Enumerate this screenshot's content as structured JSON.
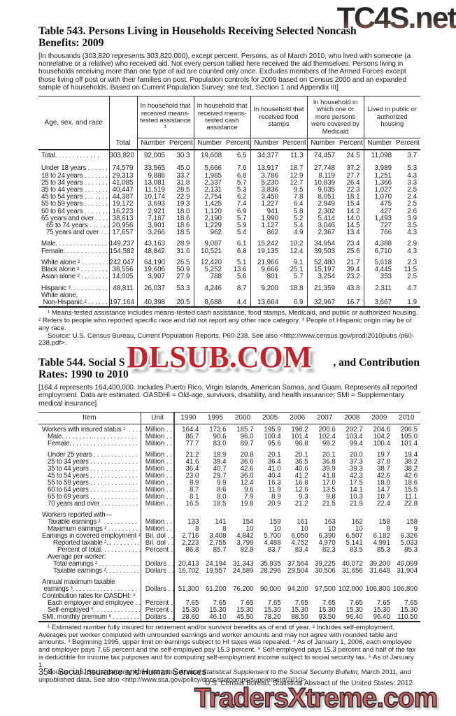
{
  "watermarks": {
    "top": "TC4S.net",
    "middle": "DLSUB.COM",
    "bottom": "TradersXtreme.com"
  },
  "colors": {
    "watermark_top_dark": "#232323",
    "watermark_top_fade": "#9b675b",
    "watermark_middle_red": "#c4232a",
    "watermark_bottom_red": "#ca6160",
    "text": "#1a1a1a"
  },
  "footer": {
    "page_line": "354  Social Insurance and Human Services",
    "credit": "U.S. Census Bureau, Statistical Abstract of the United States: 2012"
  },
  "table543": {
    "title_line1": "Table 543. Persons Living in Households Receiving Selected Noncash",
    "title_line2": "Benefits: 2009",
    "note": "[In thousands (303,820 represents 303,820,000), except percent. Persons, as of March 2010, who lived with someone (a nonrelative or a relative) who received aid. Not every person tallied here received the aid themselves. Persons living in households receiving more than one type of aid are counted only once. Excludes members of the Armed Forces except those living off post or with their families on post. Population controls for 2009 based on Census 2000 and an expanded sample of households. Based on Current Population Survey; see text, Section 1 and Appendix III]",
    "stub_label": "Age, sex, and race",
    "total_col_label": "Total",
    "sub_headers": [
      "Number",
      "Percent"
    ],
    "col_groups": [
      "In household that received means-tested assistance ¹",
      "In household that received means-tested cash assistance",
      "In household that received food stamps",
      "In household in which one or more persons were covered by Medicaid",
      "Lived in public or authorized housing"
    ],
    "rows": [
      {
        "label": "Total. . . . . . . . . . . . .",
        "bold": true,
        "values": [
          "303,820",
          "92,005",
          "30.3",
          "19,608",
          "6.5",
          "34,377",
          "11.3",
          "74,457",
          "24.5",
          "11,098",
          "3.7"
        ]
      },
      {
        "label": "Under 18 years . . . . . .",
        "gap": true,
        "values": [
          "74,579",
          "33,565",
          "45.0",
          "5,666",
          "7.6",
          "13,917",
          "18.7",
          "27,748",
          "37.2",
          "3,989",
          "5.3"
        ]
      },
      {
        "label": "18 to 24 years . . . . . . .",
        "values": [
          "29,313",
          "9,886",
          "33.7",
          "1,985",
          "6.8",
          "3,786",
          "12.9",
          "8,119",
          "27.7",
          "1,251",
          "4.3"
        ]
      },
      {
        "label": "25 to 34 years . . . . . . .",
        "values": [
          "41,085",
          "13,081",
          "31.8",
          "2,337",
          "5.7",
          "5,230",
          "12.7",
          "10,839",
          "26.4",
          "1,366",
          "3.3"
        ]
      },
      {
        "label": "35 to 44 years . . . . . . .",
        "values": [
          "40,447",
          "11,519",
          "28.5",
          "2,131",
          "5.3",
          "3,836",
          "9.5",
          "9,035",
          "22.3",
          "1,027",
          "2.5"
        ]
      },
      {
        "label": "45 to 54 years . . . . . . .",
        "values": [
          "44,387",
          "10,174",
          "22.9",
          "2,754",
          "6.2",
          "3,450",
          "7.8",
          "8,051",
          "18.1",
          "1,070",
          "2.4"
        ]
      },
      {
        "label": "55 to 59 years . . . . . . .",
        "values": [
          "19,172",
          "3,693",
          "19.3",
          "1,425",
          "7.4",
          "1,227",
          "6.4",
          "2,949",
          "15.4",
          "475",
          "2.5"
        ]
      },
      {
        "label": "60 to 64 years . . . . . . .",
        "values": [
          "16,223",
          "2,921",
          "18.0",
          "1,120",
          "6.9",
          "941",
          "5.8",
          "2,302",
          "14.2",
          "427",
          "2.6"
        ]
      },
      {
        "label": "65 years and over . . . .",
        "values": [
          "38,613",
          "7,167",
          "18.6",
          "2,190",
          "5.7",
          "1,990",
          "5.2",
          "5,414",
          "14.0",
          "1,493",
          "3.9"
        ]
      },
      {
        "label": "65 to 74 years . . . . . .",
        "indent": 1,
        "values": [
          "20,956",
          "3,901",
          "18.6",
          "1,229",
          "5.9",
          "1,127",
          "5.4",
          "3,046",
          "14.5",
          "727",
          "3.5"
        ]
      },
      {
        "label": "75 years and over . . .",
        "indent": 1,
        "values": [
          "17,657",
          "3,266",
          "18.5",
          "962",
          "5.4",
          "862",
          "4.9",
          "2,367",
          "13.4",
          "766",
          "4.3"
        ]
      },
      {
        "label": "Male. . . . . . . . . . . . . . .",
        "gap": true,
        "values": [
          "149,237",
          "43,163",
          "28.9",
          "9,087",
          "6.1",
          "15,242",
          "10.2",
          "34,954",
          "23.4",
          "4,388",
          "2.9"
        ]
      },
      {
        "label": "Female. . . . . . . . . . . . .",
        "values": [
          "154,582",
          "48,842",
          "31.6",
          "10,521",
          "6.8",
          "19,135",
          "12.4",
          "39,503",
          "25.6",
          "6,710",
          "4.3"
        ]
      },
      {
        "label": "White alone ² . . . . . . . .",
        "gap": true,
        "values": [
          "242,047",
          "64,190",
          "26.5",
          "12,420",
          "5.1",
          "21,966",
          "9.1",
          "52,480",
          "21.7",
          "5,618",
          "2.3"
        ]
      },
      {
        "label": "Black alone ² . . . . . . . .",
        "values": [
          "38,556",
          "19,606",
          "50.9",
          "5,252",
          "13.6",
          "9,666",
          "25.1",
          "15,197",
          "39.4",
          "4,445",
          "11.5"
        ]
      },
      {
        "label": "Asian alone ² . . . . . . . .",
        "values": [
          "14,005",
          "3,907",
          "27.9",
          "788",
          "5.6",
          "801",
          "5.7",
          "3,254",
          "23.2",
          "353",
          "2.5"
        ]
      },
      {
        "label": "Hispanic ³. . . . . . . . . . .",
        "gap": true,
        "values": [
          "48,811",
          "26,037",
          "53.3",
          "4,246",
          "8.7",
          "9,200",
          "18.8",
          "21,359",
          "43.8",
          "2,311",
          "4.7"
        ]
      },
      {
        "label": "White alone,\n Non-Hispanic ² . . . . . .",
        "values": [
          "197,164",
          "40,398",
          "20.5",
          "8,688",
          "4.4",
          "13,664",
          "6.9",
          "32,967",
          "16.7",
          "3,667",
          "1.9"
        ]
      }
    ],
    "footnote": "¹ Means-tested assistance includes means-tested cash assistance, food stamps, Medicaid, and public or authorized housing. ² Refers to people who reported specific race and did not report any other race category. ³ People of Hispanic origin may be of any race.",
    "source": "Source: U.S. Census Bureau, Current Population Reports,  P60-238. See also <http://www.census.gov/prod/2010pubs /p60-238.pdf>."
  },
  "table544": {
    "title_line1_left": "Table 544. Social S",
    "title_line1_right": ", and Contribution",
    "title_line2": "Rates: 1990 to 2010",
    "note": "[164.4 represents 164,400,000. Includes Puerto Rico, Virgin Islands, American Samoa, and Guam. Represents all reported employment. Data are estimated. OASDHI = Old-age, survivors, disability, and health insurance; SMI = Supplementary medical insurance]",
    "headers": [
      "Item",
      "Unit",
      "1990",
      "1995",
      "2000",
      "2005",
      "2006",
      "2007",
      "2008",
      "2009",
      "2010"
    ],
    "rows": [
      {
        "label": "Workers with insured status ¹  . . . .",
        "unit": "Million . . .",
        "values": [
          "164.4",
          "173.6",
          "185.7",
          "195.9",
          "198.2",
          "200.6",
          "202.7",
          "204.6",
          "206.5"
        ]
      },
      {
        "label": "Male. . . . . . . . . . . . . . . . . . . . . .",
        "indent": 1,
        "unit": "Million . . .",
        "values": [
          "86.7",
          "90.6",
          "96.0",
          "100.4",
          "101.4",
          "102.4",
          "103.4",
          "104.2",
          "105.0"
        ]
      },
      {
        "label": "Female. . . . . . . . . . . . . . . . . . . .",
        "indent": 1,
        "unit": "Million . . .",
        "values": [
          "77.7",
          "83.0",
          "89.7",
          "95.6",
          "96.8",
          "98.2",
          "99.4",
          "100.4",
          "101.4"
        ]
      },
      {
        "label": "Under 25 years . . . . . . . . . . . . .",
        "indent": 1,
        "gap": true,
        "unit": "Million . . .",
        "values": [
          "21.2",
          "18.9",
          "20.8",
          "20.1",
          "20.1",
          "20.1",
          "20.0",
          "19.7",
          "19.4"
        ]
      },
      {
        "label": "25 to 34 years . . . . . . . . . . . . . .",
        "indent": 1,
        "unit": "Million . . .",
        "values": [
          "41.6",
          "39.4",
          "36.6",
          "36.4",
          "36.5",
          "36.8",
          "37.3",
          "37.8",
          "38.2"
        ]
      },
      {
        "label": "35 to 44 years . . . . . . . . . . . . . .",
        "indent": 1,
        "unit": "Million . . .",
        "values": [
          "36.4",
          "40.7",
          "42.6",
          "41.0",
          "40.6",
          "39.9",
          "39.3",
          "38.7",
          "38.2"
        ]
      },
      {
        "label": "45 to 54 years . . . . . . . . . . . . . .",
        "indent": 1,
        "unit": "Million . . .",
        "values": [
          "23.0",
          "29.7",
          "36.0",
          "40.4",
          "41.2",
          "41.8",
          "42.3",
          "42.6",
          "42.6"
        ]
      },
      {
        "label": "55 to 59 years . . . . . . . . . . . . . .",
        "indent": 1,
        "unit": "Million . . .",
        "values": [
          "8.9",
          "9.9",
          "12.4",
          "16.3",
          "16.8",
          "17.0",
          "17.5",
          "18.0",
          "18.6"
        ]
      },
      {
        "label": "60 to 64 years . . . . . . . . . . . . . .",
        "indent": 1,
        "unit": "Million . . .",
        "values": [
          "8.7",
          "8.6",
          "9.6",
          "11.9",
          "12.6",
          "13.5",
          "14.1",
          "14.7",
          "15.5"
        ]
      },
      {
        "label": "65 to 69 years . . . . . . . . . . . . . .",
        "indent": 1,
        "unit": "Million . . .",
        "values": [
          "8.1",
          "8.0",
          "7.9",
          "8.9",
          "9.3",
          "9.8",
          "10.3",
          "10.7",
          "11.1"
        ]
      },
      {
        "label": "70 years and over . . . . . . . . . . .",
        "indent": 1,
        "unit": "Million . . .",
        "values": [
          "16.5",
          "18.5",
          "19.8",
          "20.9",
          "21.2",
          "21.5",
          "21.9",
          "22.4",
          "22.8"
        ]
      },
      {
        "label": "Workers reported with—",
        "gap": true,
        "unit": "",
        "values": [
          "",
          "",
          "",
          "",
          "",
          "",
          "",
          "",
          ""
        ]
      },
      {
        "label": "Taxable earnings ²  . . . . . . . . . .",
        "indent": 1,
        "unit": "Million . . .",
        "values": [
          "133",
          "141",
          "154",
          "159",
          "161",
          "163",
          "162",
          "158",
          "158"
        ]
      },
      {
        "label": "Maximum earnings ² . . . . . . . . . .",
        "indent": 1,
        "unit": "Million . . .",
        "values": [
          "8",
          "8",
          "10",
          "10",
          "10",
          "10",
          "10",
          "8",
          "9"
        ]
      },
      {
        "label": "Earnings in covered employment ²",
        "unit": "Bil. dol . . .",
        "values": [
          "2,716",
          "3,408",
          "4,842",
          "5,700",
          "6,050",
          "6,390",
          "6,507",
          "6,182",
          "6,326"
        ]
      },
      {
        "label": "Reported taxable ². . . . . . . . . . .",
        "indent": 2,
        "unit": "Bil. dol . . .",
        "values": [
          "2,223",
          "2,755",
          "3,799",
          "4,488",
          "4,752",
          "4,970",
          "5,141",
          "4,991",
          "5,033"
        ]
      },
      {
        "label": "Percent of total. . . . . . . . . . . . .",
        "indent": 3,
        "unit": "Percent . .",
        "values": [
          "86.8",
          "85.7",
          "82.8",
          "83.7",
          "83.4",
          "82.3",
          "83.5",
          "85.3",
          "85.3"
        ]
      },
      {
        "label": "Average per worker:",
        "indent": 1,
        "unit": "",
        "values": [
          "",
          "",
          "",
          "",
          "",
          "",
          "",
          "",
          ""
        ]
      },
      {
        "label": "Total earnings ² . . . . . . . . . . . .",
        "indent": 2,
        "unit": "Dollars . . .",
        "values": [
          "20,413",
          "24,194",
          "31,343",
          "35,935",
          "37,564",
          "39,225",
          "40,072",
          "39,200",
          "40,099"
        ]
      },
      {
        "label": "Taxable earnings ². . . . . . . . . .",
        "indent": 2,
        "unit": "Dollars . . .",
        "values": [
          "16,702",
          "19,557",
          "24,589",
          "28,296",
          "29,504",
          "30,506",
          "31,656",
          "31,648",
          "31,904"
        ]
      },
      {
        "label": "Annual maximum taxable\n earnings ³. . . . . . . . . . . . . . . . . . .",
        "gap": true,
        "unit": "Dollars . . .",
        "values": [
          "51,300",
          "61,200",
          "76,200",
          "90,000",
          "94,200",
          "97,500",
          "102,000",
          "106,800",
          "106,800"
        ]
      },
      {
        "label": "Contribution rates for OASDHI: ⁴",
        "unit": "",
        "values": [
          "",
          "",
          "",
          "",
          "",
          "",
          "",
          "",
          ""
        ]
      },
      {
        "label": "Each employer and employee . .",
        "indent": 1,
        "unit": "Percent . .",
        "values": [
          "7.65",
          "7.65",
          "7.65",
          "7.65",
          "7.65",
          "7.65",
          "7.65",
          "7.65",
          "7.65"
        ]
      },
      {
        "label": "Self-employed ⁵. . . . . . . . . . . . . .",
        "indent": 1,
        "unit": "Percent . .",
        "values": [
          "15.30",
          "15.30",
          "15.30",
          "15.30",
          "15.30",
          "15.30",
          "15.30",
          "15.30",
          "15.30"
        ]
      },
      {
        "label": "SMI, monthly premium ⁶ . . . . . . . .",
        "unit": "Dollars . . .",
        "values": [
          "28.60",
          "46.10",
          "45.50",
          "78.20",
          "88.50",
          "93.50",
          "96.40",
          "96.40",
          "110.50"
        ]
      }
    ],
    "footnote": "¹ Estimated number fully insured for retirement and/or survivor benefits as of end of year. ² Includes self-employment. Averages per worker computed with unrounded earnings and worker amounts and may not agree with rounded table and amounts. ³ Beginning 1995, upper limit on earnings subject to HI taxes was repealed. ⁴ As of January 1, 2006, each employee and employer pays 7.65 percent and the self-employed pay 15.3 percent. ⁵ Self-employed pays 15.3 percent and half of the tax is deductible for income tax purposes and for computing self-employment income subject to social security tax. ⁶ As of January 1.",
    "source_pre": "Source: U.S. Social Security Administration, ",
    "source_italic": "Annual Statistical Supplement to the Social Security Bulletin,",
    "source_post": " March 2011, and unpublished data. See also <http://www.ssa.gov/policy/docs/statcomps/supplement/2010>."
  }
}
